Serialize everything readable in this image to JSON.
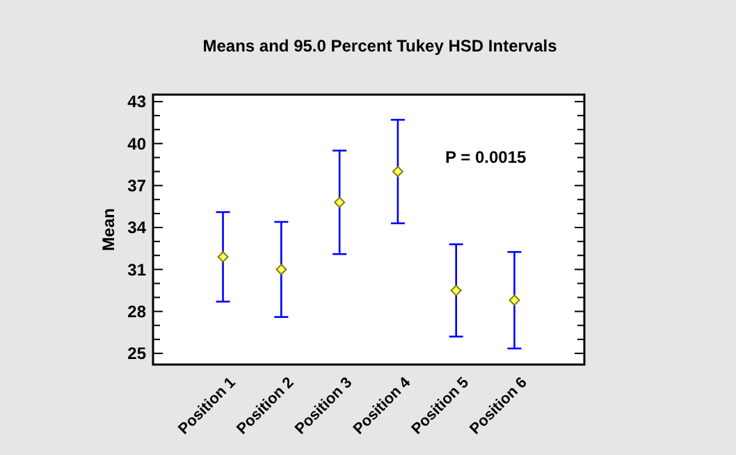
{
  "chart_data": {
    "type": "scatter",
    "title": "Means and 95.0 Percent Tukey HSD Intervals",
    "ylabel": "Mean",
    "categories": [
      "Position 1",
      "Position 2",
      "Position 3",
      "Position 4",
      "Position 5",
      "Position 6"
    ],
    "series": [
      {
        "color": "#ffff66",
        "values": [
          31.9,
          31.0,
          35.8,
          38.0,
          29.5,
          28.8
        ],
        "errors": [
          3.2,
          3.4,
          3.7,
          3.7,
          3.3,
          3.45
        ]
      }
    ],
    "marker": "diamond",
    "ylim": [
      24.2,
      43.5
    ],
    "yticks": [
      25,
      {
        "value": 26,
        "label": null
      },
      {
        "value": 27,
        "label": null
      },
      28,
      {
        "value": 29,
        "label": null
      },
      {
        "value": 30,
        "label": null
      },
      31,
      {
        "value": 32,
        "label": null
      },
      {
        "value": 33,
        "label": null
      },
      34,
      {
        "value": 35,
        "label": null
      },
      {
        "value": 36,
        "label": null
      },
      37,
      {
        "value": 38,
        "label": null
      },
      {
        "value": 39,
        "label": null
      },
      40,
      {
        "value": 41,
        "label": null
      },
      {
        "value": 42,
        "label": null
      },
      43
    ],
    "annotations": [
      "P = 0.0015"
    ],
    "grid": false
  }
}
